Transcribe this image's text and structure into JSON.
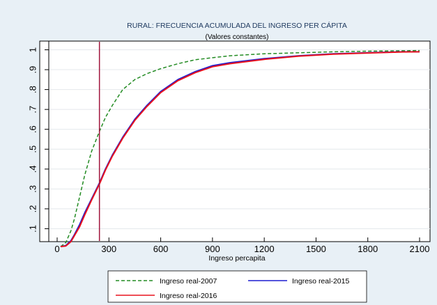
{
  "chart_data": {
    "type": "line",
    "title": "RURAL: FRECUENCIA ACUMULADA DEL INGRESO PER CÁPITA",
    "subtitle": "(Valores constantes)",
    "xlabel": "Ingreso percapita",
    "ylabel": "",
    "xlim": [
      0,
      2100
    ],
    "ylim": [
      0,
      1
    ],
    "x_ticks": [
      0,
      300,
      600,
      900,
      1200,
      1500,
      1800,
      2100
    ],
    "x_tick_labels": [
      "0",
      "300",
      "600",
      "900",
      "1200",
      "1500",
      "1800",
      "2100"
    ],
    "y_ticks": [
      0.1,
      0.2,
      0.3,
      0.4,
      0.5,
      0.6,
      0.7,
      0.8,
      0.9,
      1
    ],
    "y_tick_labels": [
      ".1",
      ".2",
      ".3",
      ".4",
      ".5",
      ".6",
      ".7",
      ".8",
      ".9",
      "1"
    ],
    "grid": "horizontal",
    "reference_line": {
      "x": 245,
      "color": "#a0143c"
    },
    "legend": {
      "position": "bottom"
    },
    "series": [
      {
        "name": "Ingreso real-2007",
        "color": "#228b22",
        "style": "dashed",
        "x": [
          20,
          50,
          80,
          100,
          130,
          160,
          200,
          245,
          280,
          320,
          380,
          450,
          520,
          600,
          700,
          800,
          900,
          1000,
          1200,
          1400,
          1600,
          1800,
          2000,
          2100
        ],
        "y": [
          0.01,
          0.03,
          0.09,
          0.15,
          0.26,
          0.37,
          0.49,
          0.59,
          0.66,
          0.72,
          0.8,
          0.85,
          0.88,
          0.905,
          0.93,
          0.95,
          0.96,
          0.97,
          0.98,
          0.985,
          0.99,
          0.993,
          0.995,
          0.996
        ]
      },
      {
        "name": "Ingreso real-2015",
        "color": "#1c1cd0",
        "style": "solid",
        "x": [
          20,
          50,
          80,
          100,
          130,
          160,
          200,
          245,
          280,
          320,
          380,
          450,
          520,
          600,
          700,
          800,
          900,
          1000,
          1200,
          1400,
          1600,
          1800,
          2000,
          2100
        ],
        "y": [
          0.01,
          0.015,
          0.04,
          0.07,
          0.12,
          0.18,
          0.25,
          0.33,
          0.4,
          0.47,
          0.56,
          0.65,
          0.72,
          0.79,
          0.85,
          0.89,
          0.92,
          0.935,
          0.955,
          0.97,
          0.98,
          0.985,
          0.99,
          0.99
        ]
      },
      {
        "name": "Ingreso real-2016",
        "color": "#e8121e",
        "style": "solid",
        "x": [
          20,
          50,
          80,
          100,
          130,
          160,
          200,
          245,
          280,
          320,
          380,
          450,
          520,
          600,
          700,
          800,
          900,
          1000,
          1200,
          1400,
          1600,
          1800,
          2000,
          2100
        ],
        "y": [
          0.01,
          0.013,
          0.035,
          0.065,
          0.11,
          0.17,
          0.245,
          0.325,
          0.395,
          0.465,
          0.555,
          0.645,
          0.715,
          0.785,
          0.845,
          0.885,
          0.915,
          0.93,
          0.952,
          0.968,
          0.978,
          0.984,
          0.989,
          0.99
        ]
      }
    ]
  }
}
